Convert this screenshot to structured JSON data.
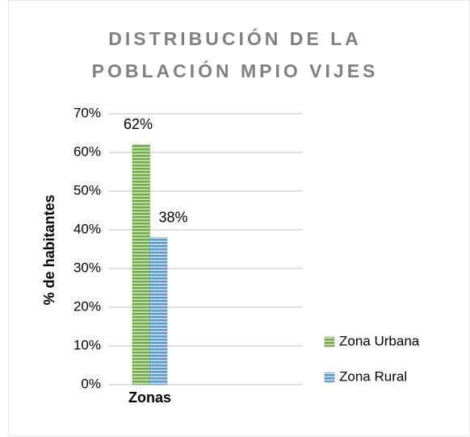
{
  "chart_data": {
    "type": "bar",
    "title": [
      "DISTRIBUCIÓN DE LA",
      "POBLACIÓN MPIO VIJES"
    ],
    "y_label": "% de habitantes",
    "categories": [
      "Zonas"
    ],
    "series": [
      {
        "name": "Zona Urbana",
        "color": "#70ad47",
        "values": [
          62
        ],
        "value_labels": [
          "62%"
        ]
      },
      {
        "name": "Zona Rural",
        "color": "#5b9bd5",
        "values": [
          38
        ],
        "value_labels": [
          "38%"
        ]
      }
    ],
    "ylim": [
      0,
      70
    ],
    "yticks": [
      {
        "value": 0,
        "label": "0%"
      },
      {
        "value": 10,
        "label": "10%"
      },
      {
        "value": 20,
        "label": "20%"
      },
      {
        "value": 30,
        "label": "30%"
      },
      {
        "value": 40,
        "label": "40%"
      },
      {
        "value": 50,
        "label": "50%"
      },
      {
        "value": 60,
        "label": "60%"
      },
      {
        "value": 70,
        "label": "70%"
      }
    ],
    "grid": true,
    "legend": "right"
  }
}
